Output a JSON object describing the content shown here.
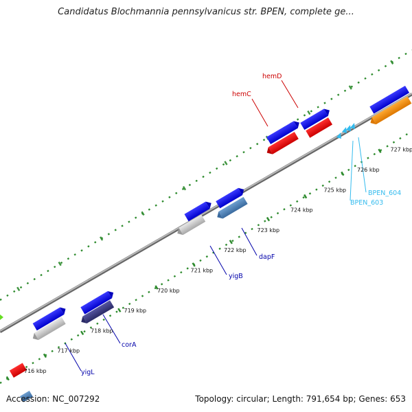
{
  "title": "Candidatus Blochmannia pennsylvanicus str. BPEN, complete ge...",
  "footer": {
    "accession": "Accession: NC_007292",
    "stats": "Topology: circular; Length: 791,654 bp; Genes: 653"
  },
  "ticks": [
    {
      "label": "716 kbp",
      "kbp": 716
    },
    {
      "label": "717 kbp",
      "kbp": 717
    },
    {
      "label": "718 kbp",
      "kbp": 718
    },
    {
      "label": "719 kbp",
      "kbp": 719
    },
    {
      "label": "720 kbp",
      "kbp": 720
    },
    {
      "label": "721 kbp",
      "kbp": 721
    },
    {
      "label": "722 kbp",
      "kbp": 722
    },
    {
      "label": "723 kbp",
      "kbp": 723
    },
    {
      "label": "724 kbp",
      "kbp": 724
    },
    {
      "label": "725 kbp",
      "kbp": 725
    },
    {
      "label": "726 kbp",
      "kbp": 726
    },
    {
      "label": "727 kbp",
      "kbp": 727
    }
  ],
  "gene_labels": [
    {
      "name": "hemD",
      "color": "#cc0000"
    },
    {
      "name": "hemC",
      "color": "#cc0000"
    },
    {
      "name": "BPEN_604",
      "color": "#33bbee"
    },
    {
      "name": "BPEN_603",
      "color": "#33bbee"
    },
    {
      "name": "dapF",
      "color": "#0000aa"
    },
    {
      "name": "yigB",
      "color": "#0000aa"
    },
    {
      "name": "corA",
      "color": "#0000aa"
    },
    {
      "name": "yigL",
      "color": "#0000aa"
    }
  ],
  "colors": {
    "cds": "#1010ee",
    "gene_red": "#ee1111",
    "gene_grey": "#c8c8c8",
    "gene_steel": "#4a7fb5",
    "gene_navy": "#3b3a80",
    "gene_orange": "#ff8c00",
    "trna": "#33bbee",
    "backbone": "#888888",
    "dots": "#2e8b2e"
  }
}
